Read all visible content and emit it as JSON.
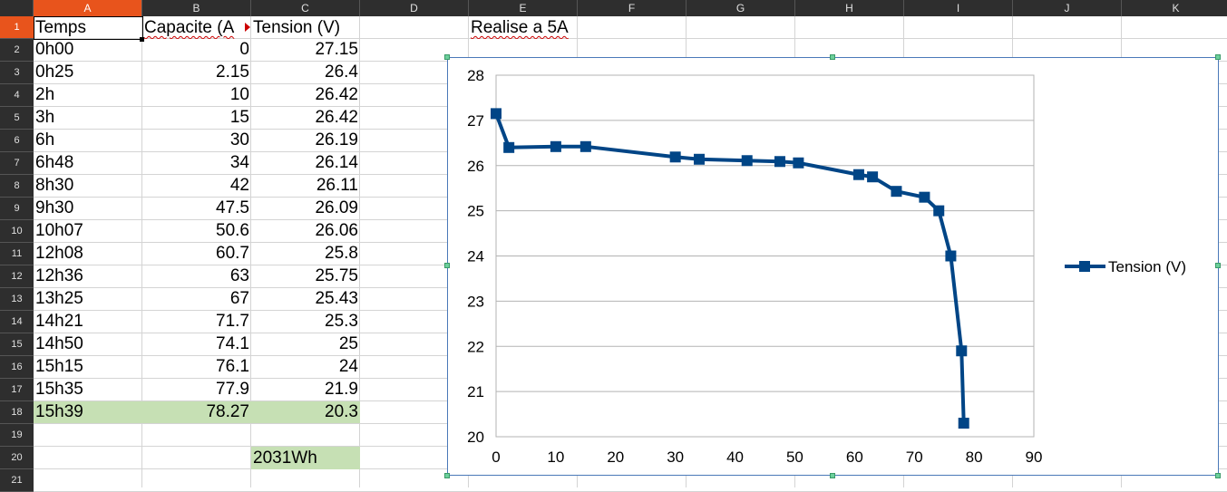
{
  "columns": [
    "A",
    "B",
    "C",
    "D",
    "E",
    "F",
    "G",
    "H",
    "I",
    "J",
    "K"
  ],
  "rows": [
    "1",
    "2",
    "3",
    "4",
    "5",
    "6",
    "7",
    "8",
    "9",
    "10",
    "11",
    "12",
    "13",
    "14",
    "15",
    "16",
    "17",
    "18",
    "19",
    "20",
    "21"
  ],
  "headers": {
    "temps": "Temps",
    "capacite": "Capacite (A",
    "tension": "Tension (V)"
  },
  "note": "Realise a 5A",
  "data_rows": [
    {
      "temps": "0h00",
      "cap": "0",
      "ten": "27.15"
    },
    {
      "temps": "0h25",
      "cap": "2.15",
      "ten": "26.4"
    },
    {
      "temps": "2h",
      "cap": "10",
      "ten": "26.42"
    },
    {
      "temps": "3h",
      "cap": "15",
      "ten": "26.42"
    },
    {
      "temps": "6h",
      "cap": "30",
      "ten": "26.19"
    },
    {
      "temps": "6h48",
      "cap": "34",
      "ten": "26.14"
    },
    {
      "temps": "8h30",
      "cap": "42",
      "ten": "26.11"
    },
    {
      "temps": "9h30",
      "cap": "47.5",
      "ten": "26.09"
    },
    {
      "temps": "10h07",
      "cap": "50.6",
      "ten": "26.06"
    },
    {
      "temps": "12h08",
      "cap": "60.7",
      "ten": "25.8"
    },
    {
      "temps": "12h36",
      "cap": "63",
      "ten": "25.75"
    },
    {
      "temps": "13h25",
      "cap": "67",
      "ten": "25.43"
    },
    {
      "temps": "14h21",
      "cap": "71.7",
      "ten": "25.3"
    },
    {
      "temps": "14h50",
      "cap": "74.1",
      "ten": "25"
    },
    {
      "temps": "15h15",
      "cap": "76.1",
      "ten": "24"
    },
    {
      "temps": "15h35",
      "cap": "77.9",
      "ten": "21.9"
    },
    {
      "temps": "15h39",
      "cap": "78.27",
      "ten": "20.3"
    }
  ],
  "total": "2031Wh",
  "colors": {
    "highlight": "#c6e0b4",
    "series": "#004586",
    "selected_header": "#e8541c"
  },
  "chart_data": {
    "type": "scatter",
    "series": [
      {
        "name": "Tension (V)",
        "x": [
          0,
          2.15,
          10,
          15,
          30,
          34,
          42,
          47.5,
          50.6,
          60.7,
          63,
          67,
          71.7,
          74.1,
          76.1,
          77.9,
          78.27
        ],
        "y": [
          27.15,
          26.4,
          26.42,
          26.42,
          26.19,
          26.14,
          26.11,
          26.09,
          26.06,
          25.8,
          25.75,
          25.43,
          25.3,
          25,
          24,
          21.9,
          20.3
        ]
      }
    ],
    "xlim": [
      0,
      90
    ],
    "ylim": [
      20,
      28
    ],
    "xticks": [
      "0",
      "10",
      "20",
      "30",
      "40",
      "50",
      "60",
      "70",
      "80",
      "90"
    ],
    "yticks": [
      "20",
      "21",
      "22",
      "23",
      "24",
      "25",
      "26",
      "27",
      "28"
    ],
    "legend": "right",
    "grid": "horizontal",
    "marker": "square"
  }
}
